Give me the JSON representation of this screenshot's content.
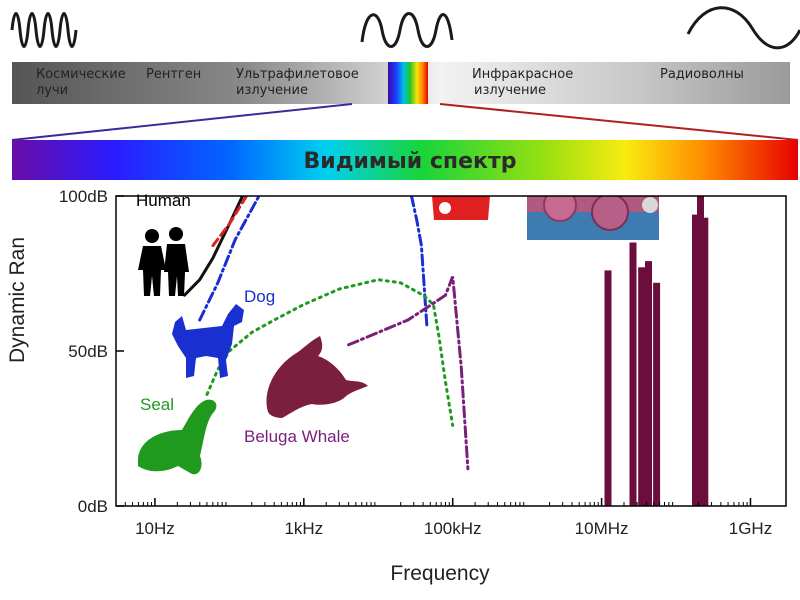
{
  "spectrum": {
    "bands": [
      {
        "line1": "Космические",
        "line2": "лучи"
      },
      {
        "line1": "Рентген",
        "line2": ""
      },
      {
        "line1": "Ультрафилетовое",
        "line2": "излучение"
      },
      {
        "line1": "Инфракрасное",
        "line2": "излучение"
      },
      {
        "line1": "Радиоволны",
        "line2": ""
      }
    ],
    "visible_label": "Видимый спектр"
  },
  "chart_data": {
    "type": "line",
    "title": "",
    "xlabel": "Frequency",
    "ylabel": "Dynamic Ran",
    "x_scale": "log",
    "xlim": [
      3,
      3000000000
    ],
    "ylim": [
      0,
      100
    ],
    "x_ticks": [
      {
        "value": 10,
        "label": "10Hz"
      },
      {
        "value": 1000,
        "label": "1kHz"
      },
      {
        "value": 100000,
        "label": "100kHz"
      },
      {
        "value": 10000000,
        "label": "10MHz"
      },
      {
        "value": 1000000000,
        "label": "1GHz"
      }
    ],
    "y_ticks": [
      {
        "value": 0,
        "label": "0dB"
      },
      {
        "value": 50,
        "label": "50dB"
      },
      {
        "value": 100,
        "label": "100dB"
      }
    ],
    "grid": false,
    "series": [
      {
        "name": "Human",
        "color": "#111111",
        "style": "solid",
        "x": [
          25,
          40,
          60,
          100,
          150
        ],
        "y": [
          68,
          73,
          80,
          91,
          100
        ]
      },
      {
        "name": "Human",
        "color": "#e02020",
        "style": "dashed",
        "x": [
          60,
          100,
          170
        ],
        "y": [
          84,
          91,
          100
        ]
      },
      {
        "name": "Dog",
        "color": "#1a2fd0",
        "style": "dashdot",
        "x": [
          40,
          70,
          120,
          250
        ],
        "y": [
          60,
          72,
          86,
          100
        ],
        "group": "left"
      },
      {
        "name": "Dog",
        "color": "#1a2fd0",
        "style": "dashdot",
        "x": [
          28000,
          33000,
          38000,
          45000
        ],
        "y": [
          100,
          92,
          84,
          58
        ],
        "group": "right"
      },
      {
        "name": "Seal",
        "color": "#1f9a1f",
        "style": "dotted",
        "x": [
          50,
          70,
          100,
          200,
          400,
          1000,
          3000,
          10000,
          20000,
          40000,
          55000,
          65000,
          80000,
          100000
        ],
        "y": [
          36,
          44,
          50,
          56,
          60,
          65,
          70,
          73,
          72,
          68,
          65,
          55,
          40,
          26
        ]
      },
      {
        "name": "Beluga Whale",
        "color": "#7a1f7a",
        "style": "dashdot",
        "x": [
          4000,
          10000,
          25000,
          45000,
          80000,
          100000,
          130000,
          160000
        ],
        "y": [
          52,
          56,
          60,
          64,
          68,
          74,
          45,
          12
        ]
      }
    ],
    "bars": {
      "color": "#6b0e3e",
      "values": [
        {
          "x": 12000000,
          "y": 76
        },
        {
          "x": 26000000,
          "y": 85
        },
        {
          "x": 34000000,
          "y": 77
        },
        {
          "x": 42000000,
          "y": 79
        },
        {
          "x": 54000000,
          "y": 72
        },
        {
          "x": 180000000,
          "y": 94
        },
        {
          "x": 210000000,
          "y": 100
        },
        {
          "x": 240000000,
          "y": 93
        }
      ]
    },
    "annotations": [
      {
        "text": "Human",
        "color": "#000000"
      },
      {
        "text": "Dog",
        "color": "#1a2fd0"
      },
      {
        "text": "Seal",
        "color": "#1f9a1f"
      },
      {
        "text": "Beluga Whale",
        "color": "#7a1f7a"
      }
    ]
  }
}
